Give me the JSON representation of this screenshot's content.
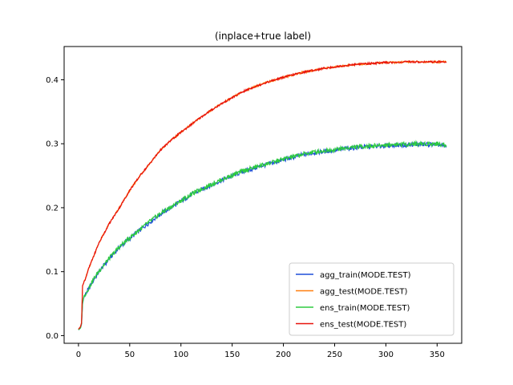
{
  "chart_data": {
    "type": "line",
    "title": "(inplace+true label)",
    "xlabel": "",
    "ylabel": "",
    "xlim": [
      -14,
      374
    ],
    "ylim": [
      -0.012,
      0.452
    ],
    "xticks": [
      0,
      50,
      100,
      150,
      200,
      250,
      300,
      350
    ],
    "yticks": [
      0.0,
      0.1,
      0.2,
      0.3,
      0.4
    ],
    "grid": false,
    "legend_position": "lower-right",
    "series": [
      {
        "name": "agg_train(MODE.TEST)",
        "color": "#1f4fd8",
        "x": [
          0,
          2,
          3,
          4,
          5,
          7,
          10,
          15,
          20,
          25,
          30,
          40,
          50,
          60,
          70,
          80,
          90,
          100,
          110,
          120,
          130,
          140,
          150,
          160,
          170,
          180,
          190,
          200,
          210,
          220,
          230,
          240,
          250,
          260,
          270,
          280,
          290,
          300,
          310,
          320,
          330,
          340,
          350,
          359
        ],
        "y": [
          0.009,
          0.012,
          0.018,
          0.05,
          0.058,
          0.065,
          0.073,
          0.088,
          0.1,
          0.11,
          0.12,
          0.138,
          0.152,
          0.165,
          0.178,
          0.19,
          0.2,
          0.21,
          0.22,
          0.228,
          0.236,
          0.243,
          0.25,
          0.256,
          0.261,
          0.266,
          0.27,
          0.275,
          0.279,
          0.283,
          0.286,
          0.288,
          0.29,
          0.292,
          0.294,
          0.295,
          0.296,
          0.297,
          0.298,
          0.298,
          0.299,
          0.299,
          0.299,
          0.295
        ]
      },
      {
        "name": "agg_test(MODE.TEST)",
        "color": "#ff7f0e",
        "x": [
          0,
          2,
          3,
          4,
          5,
          7,
          10,
          15,
          20,
          25,
          30,
          40,
          50,
          60,
          70,
          80,
          90,
          100,
          110,
          120,
          130,
          140,
          150,
          160,
          170,
          180,
          190,
          200,
          210,
          220,
          230,
          240,
          250,
          260,
          270,
          280,
          290,
          300,
          310,
          320,
          330,
          340,
          350,
          359
        ],
        "y": [
          0.01,
          0.014,
          0.02,
          0.078,
          0.082,
          0.09,
          0.105,
          0.125,
          0.145,
          0.16,
          0.175,
          0.2,
          0.227,
          0.25,
          0.27,
          0.29,
          0.305,
          0.318,
          0.33,
          0.342,
          0.353,
          0.363,
          0.372,
          0.381,
          0.388,
          0.394,
          0.399,
          0.404,
          0.408,
          0.412,
          0.415,
          0.418,
          0.42,
          0.422,
          0.424,
          0.425,
          0.426,
          0.427,
          0.427,
          0.428,
          0.428,
          0.428,
          0.428,
          0.428
        ]
      },
      {
        "name": "ens_train(MODE.TEST)",
        "color": "#2ecc40",
        "x": [
          0,
          2,
          3,
          4,
          5,
          7,
          10,
          15,
          20,
          25,
          30,
          40,
          50,
          60,
          70,
          80,
          90,
          100,
          110,
          120,
          130,
          140,
          150,
          160,
          170,
          180,
          190,
          200,
          210,
          220,
          230,
          240,
          250,
          260,
          270,
          280,
          290,
          300,
          310,
          320,
          330,
          340,
          350,
          359
        ],
        "y": [
          0.009,
          0.012,
          0.019,
          0.051,
          0.059,
          0.066,
          0.074,
          0.089,
          0.101,
          0.111,
          0.121,
          0.139,
          0.153,
          0.166,
          0.179,
          0.191,
          0.201,
          0.211,
          0.221,
          0.229,
          0.237,
          0.244,
          0.251,
          0.257,
          0.262,
          0.267,
          0.271,
          0.276,
          0.28,
          0.284,
          0.287,
          0.289,
          0.291,
          0.293,
          0.295,
          0.296,
          0.297,
          0.298,
          0.299,
          0.299,
          0.3,
          0.3,
          0.3,
          0.298
        ]
      },
      {
        "name": "ens_test(MODE.TEST)",
        "color": "#e8120c",
        "x": [
          0,
          2,
          3,
          4,
          5,
          7,
          10,
          15,
          20,
          25,
          30,
          40,
          50,
          60,
          70,
          80,
          90,
          100,
          110,
          120,
          130,
          140,
          150,
          160,
          170,
          180,
          190,
          200,
          210,
          220,
          230,
          240,
          250,
          260,
          270,
          280,
          290,
          300,
          310,
          320,
          330,
          340,
          350,
          359
        ],
        "y": [
          0.01,
          0.014,
          0.02,
          0.078,
          0.082,
          0.09,
          0.105,
          0.125,
          0.145,
          0.16,
          0.175,
          0.2,
          0.227,
          0.25,
          0.27,
          0.29,
          0.305,
          0.318,
          0.33,
          0.342,
          0.353,
          0.363,
          0.372,
          0.381,
          0.388,
          0.394,
          0.399,
          0.404,
          0.408,
          0.412,
          0.415,
          0.418,
          0.42,
          0.422,
          0.424,
          0.425,
          0.426,
          0.427,
          0.427,
          0.428,
          0.428,
          0.428,
          0.428,
          0.428
        ]
      }
    ]
  }
}
